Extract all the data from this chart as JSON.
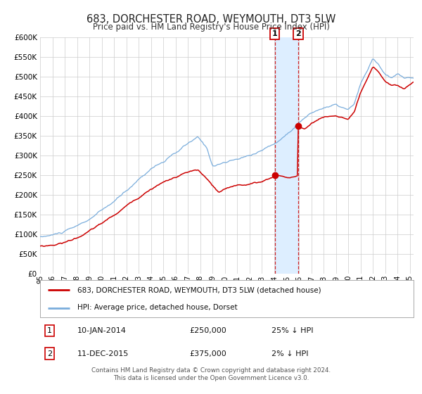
{
  "title": "683, DORCHESTER ROAD, WEYMOUTH, DT3 5LW",
  "subtitle": "Price paid vs. HM Land Registry's House Price Index (HPI)",
  "x_start": 1995.0,
  "x_end": 2025.3,
  "y_min": 0,
  "y_max": 600000,
  "y_ticks": [
    0,
    50000,
    100000,
    150000,
    200000,
    250000,
    300000,
    350000,
    400000,
    450000,
    500000,
    550000,
    600000
  ],
  "x_ticks": [
    1995,
    1996,
    1997,
    1998,
    1999,
    2000,
    2001,
    2002,
    2003,
    2004,
    2005,
    2006,
    2007,
    2008,
    2009,
    2010,
    2011,
    2012,
    2013,
    2014,
    2015,
    2016,
    2017,
    2018,
    2019,
    2020,
    2021,
    2022,
    2023,
    2024,
    2025
  ],
  "sale1_x": 2014.033,
  "sale1_y": 250000,
  "sale2_x": 2015.95,
  "sale2_y": 375000,
  "highlight_x1": 2014.033,
  "highlight_x2": 2015.95,
  "red_line_color": "#cc0000",
  "blue_line_color": "#7aaddc",
  "highlight_color": "#ddeeff",
  "dot_color": "#cc0000",
  "marker_box_color": "#cc0000",
  "legend_label_red": "683, DORCHESTER ROAD, WEYMOUTH, DT3 5LW (detached house)",
  "legend_label_blue": "HPI: Average price, detached house, Dorset",
  "table_row1": [
    "1",
    "10-JAN-2014",
    "£250,000",
    "25% ↓ HPI"
  ],
  "table_row2": [
    "2",
    "11-DEC-2015",
    "£375,000",
    "2% ↓ HPI"
  ],
  "footer_line1": "Contains HM Land Registry data © Crown copyright and database right 2024.",
  "footer_line2": "This data is licensed under the Open Government Licence v3.0.",
  "background_color": "#ffffff",
  "grid_color": "#cccccc",
  "title_fontsize": 10.5,
  "subtitle_fontsize": 8.5
}
